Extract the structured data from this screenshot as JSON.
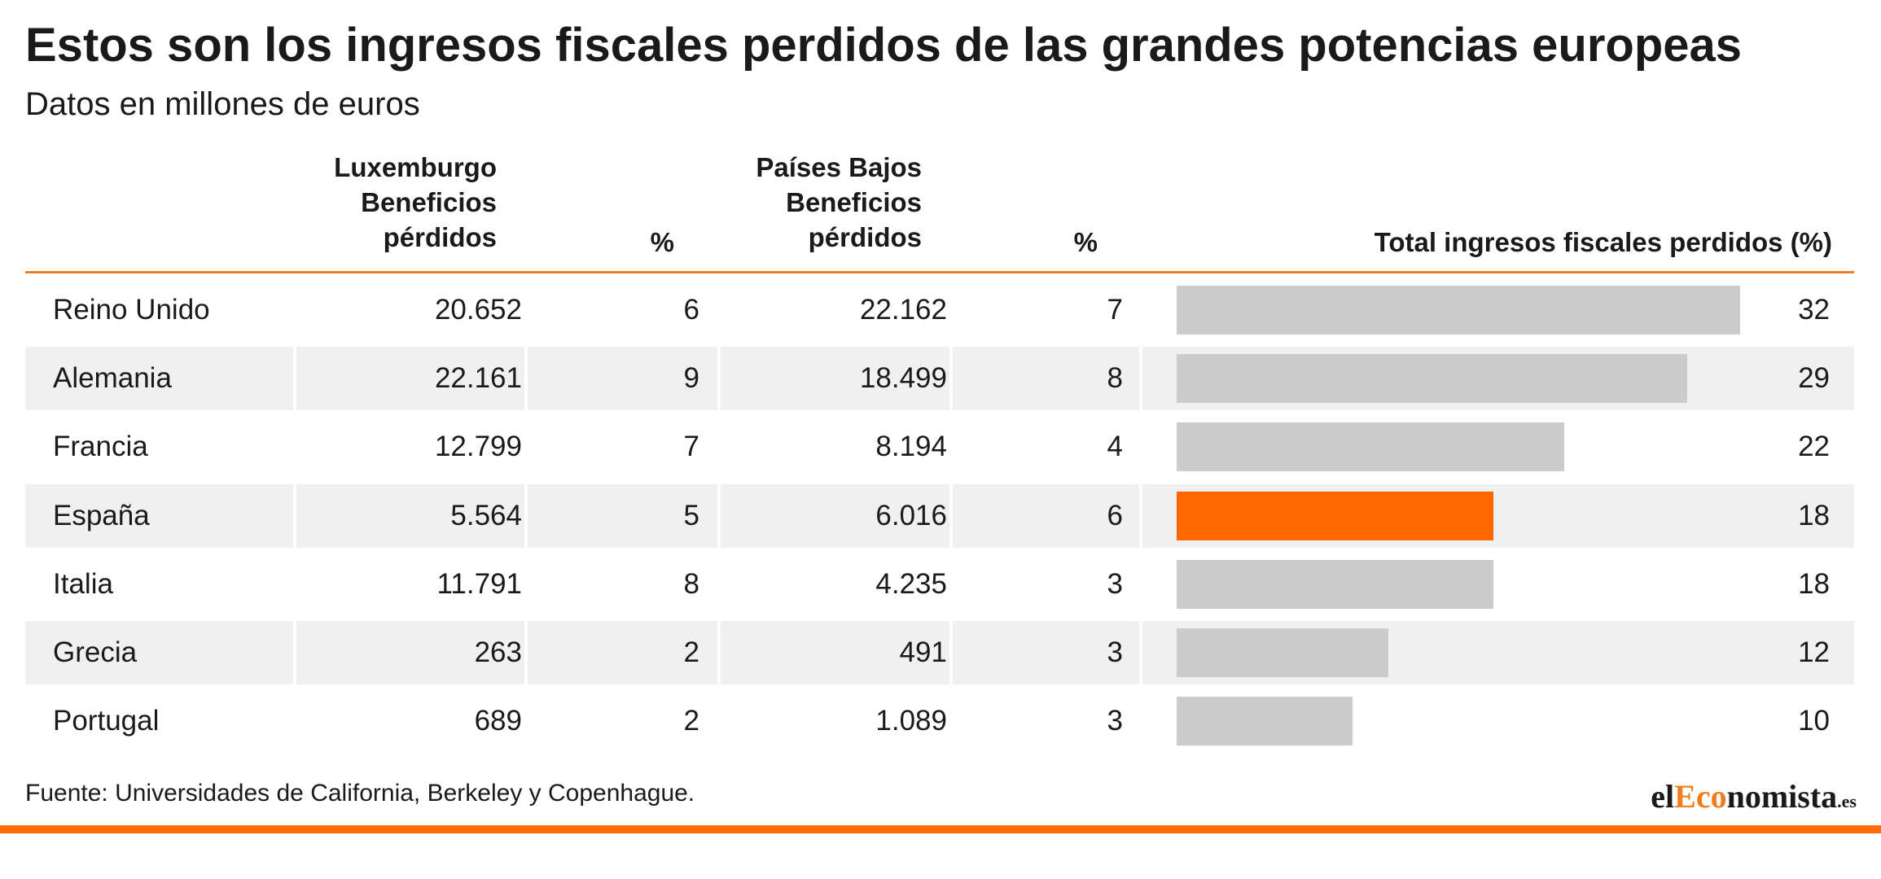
{
  "colors": {
    "accent_orange": "#ff6600",
    "header_rule": "#f07d1e",
    "bar_default": "#cccccc",
    "row_shade": "#f0f0f0",
    "text": "#1a1a1a"
  },
  "header": {
    "title": "Estos son los ingresos fiscales perdidos de las grandes potencias europeas",
    "subtitle": "Datos en millones de euros"
  },
  "columns": {
    "lux_lines": [
      "Luxemburgo",
      "Beneficios",
      "pérdidos"
    ],
    "lux_pct": "%",
    "nl_lines": [
      "Países Bajos",
      "Beneficios",
      "pérdidos"
    ],
    "nl_pct": "%",
    "total": "Total ingresos fiscales perdidos (%)"
  },
  "footer": {
    "source": "Fuente: Universidades de California, Berkeley y Copenhague.",
    "logo_el": "el",
    "logo_eco": "Eco",
    "logo_rest": "nomista",
    "logo_tld": ".es"
  },
  "chart_data": {
    "type": "table",
    "title": "Estos son los ingresos fiscales perdidos de las grandes potencias europeas",
    "subtitle": "Datos en millones de euros",
    "highlight": "España",
    "bar_max": 32,
    "rows": [
      {
        "country": "Reino Unido",
        "lux": "20.652",
        "lux_pct": "6",
        "nl": "22.162",
        "nl_pct": "7",
        "total_label": "32",
        "total": 32
      },
      {
        "country": "Alemania",
        "lux": "22.161",
        "lux_pct": "9",
        "nl": "18.499",
        "nl_pct": "8",
        "total_label": "29",
        "total": 29
      },
      {
        "country": "Francia",
        "lux": "12.799",
        "lux_pct": "7",
        "nl": "8.194",
        "nl_pct": "4",
        "total_label": "22",
        "total": 22
      },
      {
        "country": "España",
        "lux": "5.564",
        "lux_pct": "5",
        "nl": "6.016",
        "nl_pct": "6",
        "total_label": "18",
        "total": 18
      },
      {
        "country": "Italia",
        "lux": "11.791",
        "lux_pct": "8",
        "nl": "4.235",
        "nl_pct": "3",
        "total_label": "18",
        "total": 18
      },
      {
        "country": "Grecia",
        "lux": "263",
        "lux_pct": "2",
        "nl": "491",
        "nl_pct": "3",
        "total_label": "12",
        "total": 12
      },
      {
        "country": "Portugal",
        "lux": "689",
        "lux_pct": "2",
        "nl": "1.089",
        "nl_pct": "3",
        "total_label": "10",
        "total": 10
      }
    ]
  }
}
